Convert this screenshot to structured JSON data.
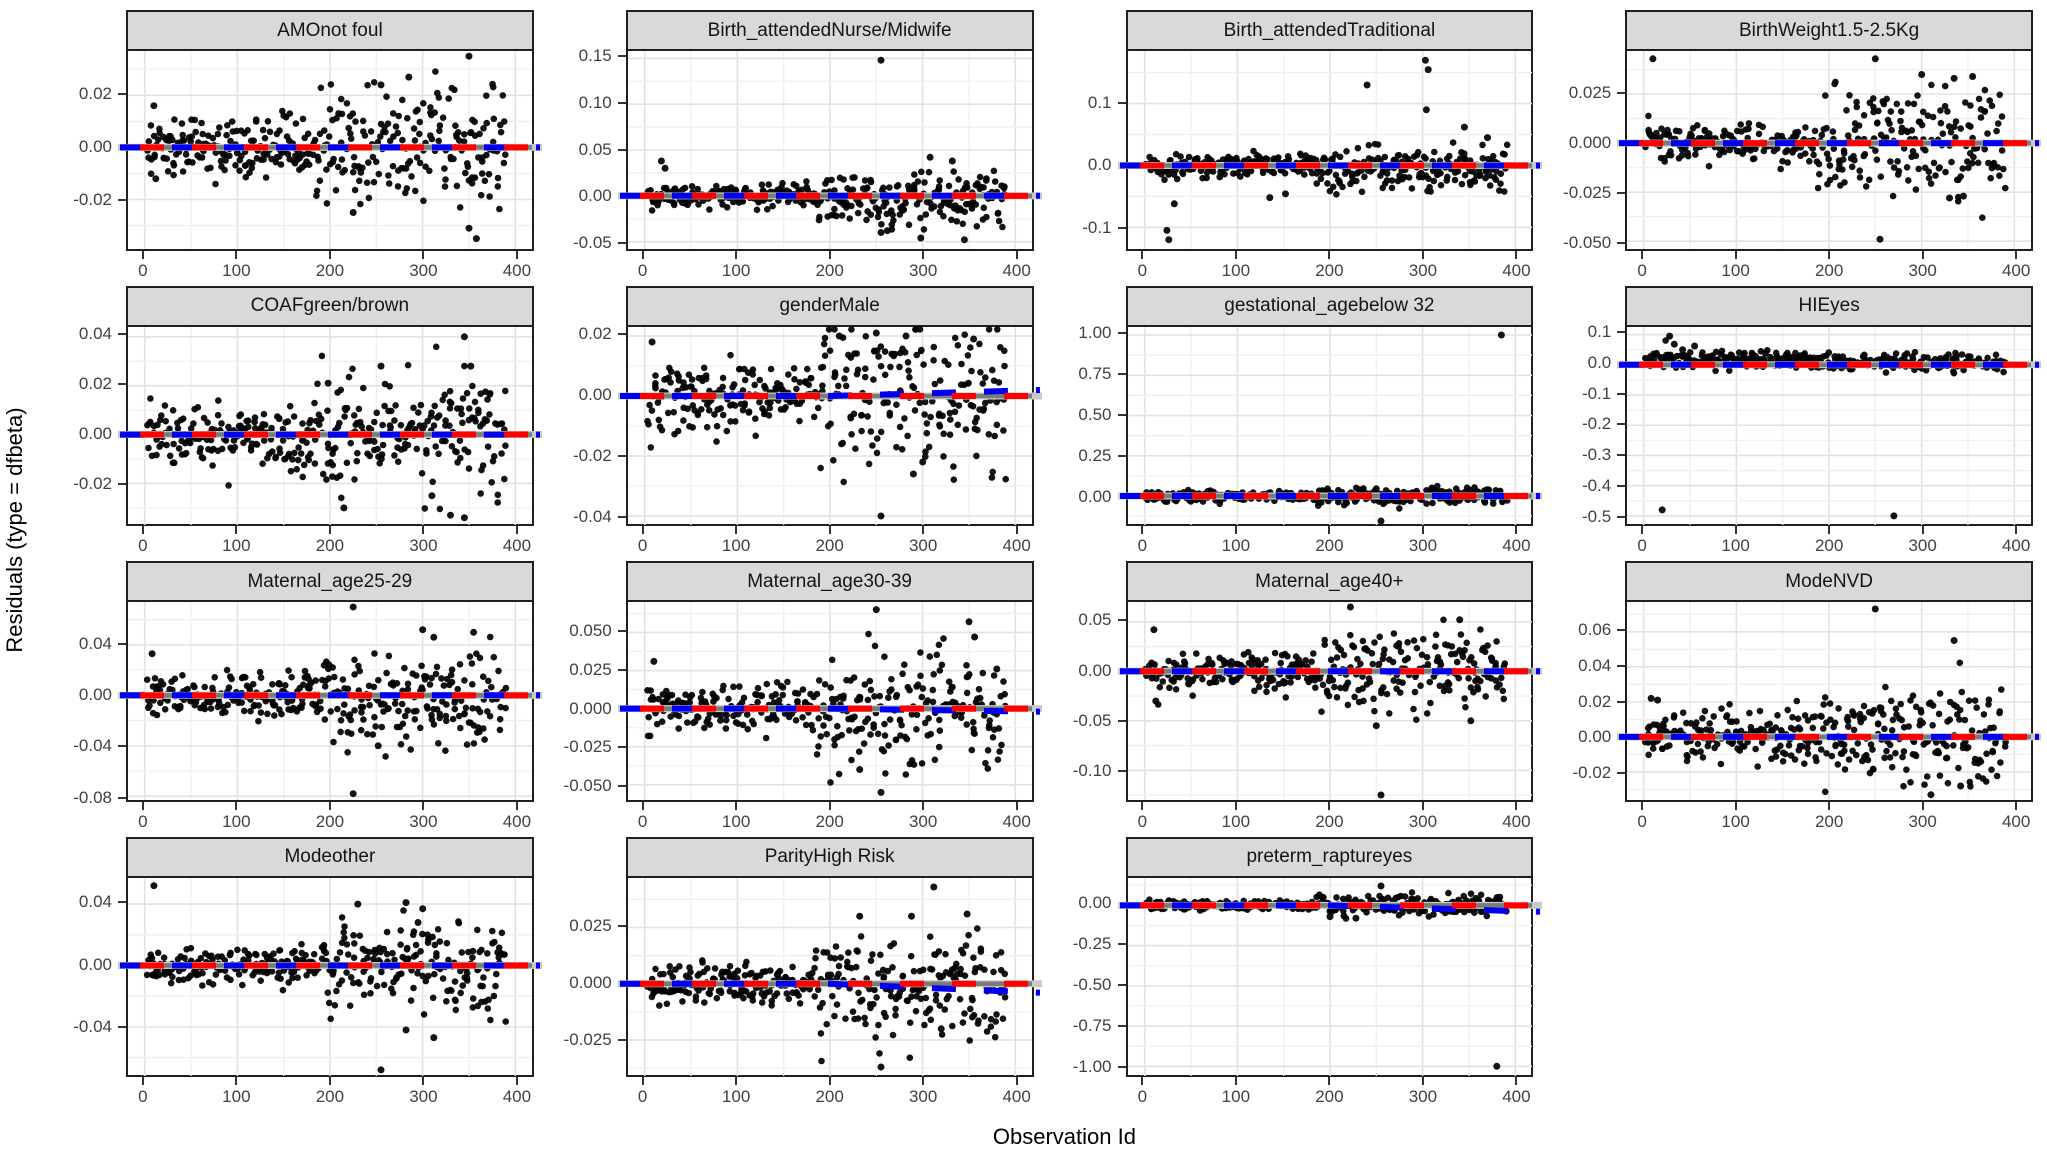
{
  "style": {
    "point_color": "#000000",
    "reference_line_color": "#ff0000",
    "smooth_line_color": "#0000ee",
    "underlay_line_color": "#c9c9c9",
    "dense_band_color": "#3a3a3a",
    "strip_background": "#d9d9d9",
    "strip_border": "#1f1f1f",
    "panel_border": "#1f1f1f",
    "grid_major_color": "#e2e2e2",
    "grid_minor_color": "#f0f0f0",
    "tick_text_color": "#424242",
    "axis_title_color": "#000000"
  },
  "chart_data": {
    "type": "scatter",
    "title": "",
    "xlabel": "Observation Id",
    "ylabel": "Residuals (type = dfbeta)",
    "legend": "none",
    "grid": "on",
    "x_range": [
      -18,
      418
    ],
    "xticks": [
      0,
      100,
      200,
      300,
      400
    ],
    "xtick_labels": [
      "0",
      "100",
      "200",
      "300",
      "400"
    ],
    "x_minor_ticks": [
      50,
      150,
      250,
      350
    ],
    "n_points_per_facet": 360,
    "noise_split_x": 185,
    "reference_line_y": 0,
    "facets": [
      {
        "title": "AMOnot foul",
        "ylim": [
          -0.039,
          0.037
        ],
        "yticks": [
          -0.02,
          0.0,
          0.02
        ],
        "ytick_labels": [
          "-0.02",
          "0.00",
          "0.02"
        ],
        "sd1": 0.005,
        "sd2": 0.01,
        "mean1": 0,
        "mean2": 0,
        "smooth_end": 0,
        "seed": 18,
        "outliers": [
          [
            350,
            0.035
          ],
          [
            285,
            0.027
          ],
          [
            255,
            0.024
          ],
          [
            225,
            -0.025
          ],
          [
            350,
            -0.031
          ],
          [
            358,
            -0.035
          ],
          [
            10,
            0.016
          ],
          [
            12,
            -0.012
          ]
        ]
      },
      {
        "title": "Birth_attendedNurse/Midwife",
        "ylim": [
          -0.058,
          0.158
        ],
        "yticks": [
          -0.05,
          0.0,
          0.05,
          0.1,
          0.15
        ],
        "ytick_labels": [
          "-0.05",
          "0.00",
          "0.05",
          "0.10",
          "0.15"
        ],
        "sd1": 0.005,
        "sd2": 0.012,
        "mean1": 0,
        "mean2": -0.004,
        "smooth_end": 0,
        "seed": 29,
        "outliers": [
          [
            255,
            0.148
          ],
          [
            18,
            0.038
          ],
          [
            22,
            0.03
          ],
          [
            308,
            0.042
          ],
          [
            332,
            0.038
          ],
          [
            255,
            -0.04
          ],
          [
            298,
            -0.046
          ],
          [
            262,
            -0.038
          ],
          [
            345,
            -0.048
          ]
        ]
      },
      {
        "title": "Birth_attendedTraditional",
        "ylim": [
          -0.135,
          0.185
        ],
        "yticks": [
          -0.1,
          0.0,
          0.1
        ],
        "ytick_labels": [
          "-0.1",
          "0.0",
          "0.1"
        ],
        "sd1": 0.008,
        "sd2": 0.015,
        "mean1": 0,
        "mean2": -0.006,
        "smooth_end": 0,
        "seed": 40,
        "outliers": [
          [
            303,
            0.17
          ],
          [
            306,
            0.155
          ],
          [
            240,
            0.13
          ],
          [
            304,
            0.09
          ],
          [
            345,
            0.062
          ],
          [
            24,
            -0.105
          ],
          [
            26,
            -0.12
          ],
          [
            32,
            -0.062
          ],
          [
            135,
            -0.052
          ],
          [
            152,
            -0.046
          ],
          [
            370,
            0.045
          ]
        ]
      },
      {
        "title": "BirthWeight1.5-2.5Kg",
        "ylim": [
          -0.054,
          0.047
        ],
        "yticks": [
          -0.05,
          -0.025,
          0.0,
          0.025
        ],
        "ytick_labels": [
          "-0.050",
          "-0.025",
          "0.000",
          "0.025"
        ],
        "sd1": 0.004,
        "sd2": 0.012,
        "mean1": 0,
        "mean2": 0,
        "smooth_end": 0,
        "seed": 51,
        "outliers": [
          [
            10,
            0.043
          ],
          [
            250,
            0.043
          ],
          [
            255,
            -0.049
          ],
          [
            300,
            0.035
          ],
          [
            335,
            0.033
          ],
          [
            355,
            0.034
          ],
          [
            330,
            -0.028
          ],
          [
            345,
            -0.027
          ]
        ]
      },
      {
        "title": "COAFgreen/brown",
        "ylim": [
          -0.037,
          0.044
        ],
        "yticks": [
          -0.02,
          0.0,
          0.02,
          0.04
        ],
        "ytick_labels": [
          "-0.02",
          "0.00",
          "0.02",
          "0.04"
        ],
        "sd1": 0.005,
        "sd2": 0.01,
        "mean1": 0,
        "mean2": 0,
        "smooth_end": 0,
        "seed": 62,
        "outliers": [
          [
            345,
            0.04
          ],
          [
            255,
            0.028
          ],
          [
            352,
            0.028
          ],
          [
            215,
            -0.03
          ],
          [
            330,
            -0.033
          ],
          [
            310,
            -0.025
          ],
          [
            345,
            -0.034
          ],
          [
            198,
            0.021
          ]
        ]
      },
      {
        "title": "genderMale",
        "ylim": [
          -0.043,
          0.023
        ],
        "yticks": [
          -0.04,
          -0.02,
          0.0,
          0.02
        ],
        "ytick_labels": [
          "-0.04",
          "-0.02",
          "0.00",
          "0.02"
        ],
        "sd1": 0.005,
        "sd2": 0.01,
        "mean1": 0,
        "mean2": 0,
        "smooth_end": 0.002,
        "seed": 73,
        "outliers": [
          [
            255,
            -0.04
          ],
          [
            290,
            -0.026
          ],
          [
            210,
            0.02
          ],
          [
            250,
            0.021
          ],
          [
            282,
            0.02
          ],
          [
            355,
            0.019
          ],
          [
            8,
            0.018
          ],
          [
            300,
            -0.022
          ]
        ]
      },
      {
        "title": "gestational_agebelow 32",
        "ylim": [
          -0.18,
          1.05
        ],
        "yticks": [
          0.0,
          0.25,
          0.5,
          0.75,
          1.0
        ],
        "ytick_labels": [
          "0.00",
          "0.25",
          "0.50",
          "0.75",
          "1.00"
        ],
        "sd1": 0.013,
        "sd2": 0.02,
        "mean1": 0,
        "mean2": 0.004,
        "smooth_end": 0,
        "seed": 84,
        "outliers": [
          [
            385,
            1.0
          ],
          [
            255,
            -0.155
          ],
          [
            250,
            0.045
          ],
          [
            310,
            0.05
          ]
        ]
      },
      {
        "title": "HIEyes",
        "ylim": [
          -0.53,
          0.125
        ],
        "yticks": [
          -0.5,
          -0.4,
          -0.3,
          -0.2,
          -0.1,
          0.0,
          0.1
        ],
        "ytick_labels": [
          "-0.5",
          "-0.4",
          "-0.3",
          "-0.2",
          "-0.1",
          "0.0",
          "0.1"
        ],
        "sd1": 0.013,
        "sd2": 0.012,
        "mean1": 0.015,
        "mean2": 0.008,
        "smooth_end": 0,
        "seed": 95,
        "outliers": [
          [
            20,
            -0.48
          ],
          [
            270,
            -0.5
          ],
          [
            28,
            0.095
          ],
          [
            33,
            0.068
          ],
          [
            55,
            0.062
          ],
          [
            42,
            0.05
          ]
        ]
      },
      {
        "title": "Maternal_age25-29",
        "ylim": [
          -0.083,
          0.074
        ],
        "yticks": [
          -0.08,
          -0.04,
          0.0,
          0.04
        ],
        "ytick_labels": [
          "-0.08",
          "-0.04",
          "0.00",
          "0.04"
        ],
        "sd1": 0.007,
        "sd2": 0.016,
        "mean1": 0,
        "mean2": 0,
        "smooth_end": 0,
        "seed": 106,
        "outliers": [
          [
            225,
            0.07
          ],
          [
            300,
            0.052
          ],
          [
            312,
            0.046
          ],
          [
            225,
            -0.078
          ],
          [
            252,
            -0.04
          ],
          [
            8,
            0.033
          ],
          [
            355,
            0.05
          ]
        ]
      },
      {
        "title": "Maternal_age30-39",
        "ylim": [
          -0.06,
          0.07
        ],
        "yticks": [
          -0.05,
          -0.025,
          0.0,
          0.025,
          0.05
        ],
        "ytick_labels": [
          "-0.050",
          "-0.025",
          "0.000",
          "0.025",
          "0.050"
        ],
        "sd1": 0.006,
        "sd2": 0.014,
        "mean1": 0,
        "mean2": -0.002,
        "smooth_end": -0.002,
        "seed": 117,
        "outliers": [
          [
            250,
            0.065
          ],
          [
            350,
            0.057
          ],
          [
            356,
            0.047
          ],
          [
            255,
            -0.055
          ],
          [
            232,
            -0.04
          ],
          [
            10,
            0.031
          ],
          [
            380,
            0.026
          ]
        ]
      },
      {
        "title": "Maternal_age40+",
        "ylim": [
          -0.13,
          0.07
        ],
        "yticks": [
          -0.1,
          -0.05,
          0.0,
          0.05
        ],
        "ytick_labels": [
          "-0.10",
          "-0.05",
          "0.00",
          "0.05"
        ],
        "sd1": 0.008,
        "sd2": 0.017,
        "mean1": 0,
        "mean2": 0,
        "smooth_end": 0,
        "seed": 128,
        "outliers": [
          [
            222,
            0.065
          ],
          [
            340,
            0.052
          ],
          [
            255,
            -0.125
          ],
          [
            250,
            -0.055
          ],
          [
            10,
            0.042
          ],
          [
            12,
            -0.03
          ],
          [
            352,
            -0.05
          ]
        ]
      },
      {
        "title": "ModeNVD",
        "ylim": [
          -0.036,
          0.077
        ],
        "yticks": [
          -0.02,
          0.0,
          0.02,
          0.04,
          0.06
        ],
        "ytick_labels": [
          "-0.02",
          "0.00",
          "0.02",
          "0.04",
          "0.06"
        ],
        "sd1": 0.006,
        "sd2": 0.011,
        "mean1": 0,
        "mean2": 0,
        "smooth_end": 0,
        "seed": 139,
        "outliers": [
          [
            250,
            0.073
          ],
          [
            335,
            0.055
          ],
          [
            310,
            -0.033
          ],
          [
            342,
            -0.028
          ],
          [
            8,
            0.022
          ],
          [
            15,
            0.021
          ]
        ]
      },
      {
        "title": "Modeother",
        "ylim": [
          -0.072,
          0.057
        ],
        "yticks": [
          -0.04,
          0.0,
          0.04
        ],
        "ytick_labels": [
          "-0.04",
          "0.00",
          "0.04"
        ],
        "sd1": 0.005,
        "sd2": 0.013,
        "mean1": 0,
        "mean2": 0,
        "smooth_end": 0,
        "seed": 150,
        "outliers": [
          [
            10,
            0.052
          ],
          [
            230,
            0.04
          ],
          [
            282,
            0.041
          ],
          [
            300,
            0.037
          ],
          [
            255,
            -0.068
          ],
          [
            282,
            -0.042
          ],
          [
            312,
            -0.047
          ],
          [
            295,
            0.028
          ]
        ]
      },
      {
        "title": "ParityHigh Risk",
        "ylim": [
          -0.041,
          0.047
        ],
        "yticks": [
          -0.025,
          0.0,
          0.025
        ],
        "ytick_labels": [
          "-0.025",
          "0.000",
          "0.025"
        ],
        "sd1": 0.004,
        "sd2": 0.01,
        "mean1": 0,
        "mean2": -0.002,
        "smooth_end": -0.004,
        "seed": 161,
        "outliers": [
          [
            312,
            0.043
          ],
          [
            232,
            0.03
          ],
          [
            255,
            -0.037
          ],
          [
            288,
            0.03
          ],
          [
            348,
            0.031
          ],
          [
            320,
            -0.02
          ]
        ]
      },
      {
        "title": "preterm_raptureyes",
        "ylim": [
          -1.06,
          0.17
        ],
        "yticks": [
          -1.0,
          -0.75,
          -0.5,
          -0.25,
          0.0
        ],
        "ytick_labels": [
          "-1.00",
          "-0.75",
          "-0.50",
          "-0.25",
          "0.00"
        ],
        "sd1": 0.013,
        "sd2": 0.027,
        "mean1": 0,
        "mean2": 0,
        "smooth_end": -0.04,
        "seed": 172,
        "outliers": [
          [
            255,
            0.12
          ],
          [
            380,
            -1.0
          ],
          [
            200,
            -0.07
          ],
          [
            228,
            -0.08
          ],
          [
            215,
            -0.065
          ]
        ]
      }
    ]
  }
}
